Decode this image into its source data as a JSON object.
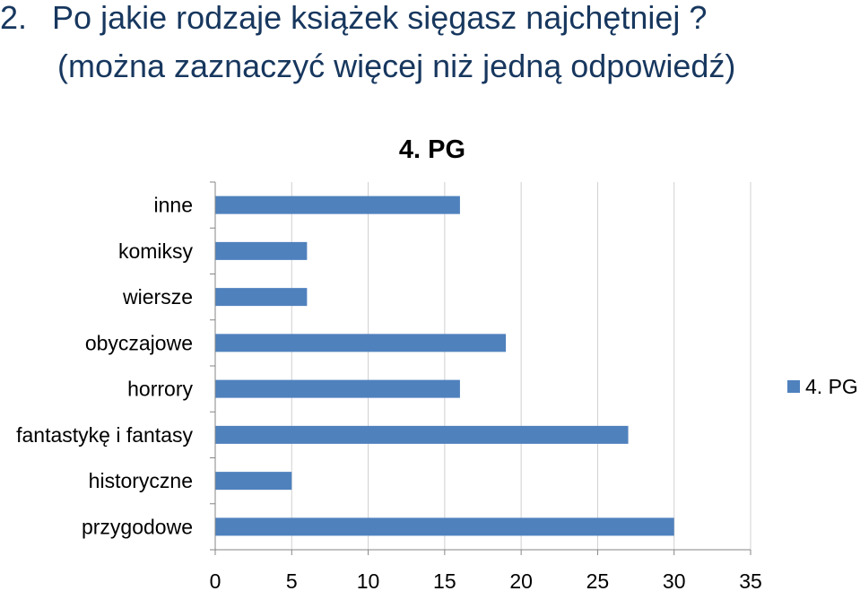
{
  "question": {
    "number_text": "2.",
    "line1": "Po jakie rodzaje książek sięgasz najchętniej ?",
    "line2": "(można zaznaczyć więcej niż jedną odpowiedź)"
  },
  "colors": {
    "bar": "#4f81bd",
    "question_text": "#17375e",
    "axis": "#868686",
    "text": "#000000"
  },
  "chart_data": {
    "type": "bar",
    "orientation": "horizontal",
    "title": "4. PG",
    "categories": [
      "inne",
      "komiksy",
      "wiersze",
      "obyczajowe",
      "horrory",
      "fantastykę i fantasy",
      "historyczne",
      "przygodowe"
    ],
    "series": [
      {
        "name": "4. PG",
        "values": [
          16,
          6,
          6,
          19,
          16,
          27,
          5,
          30
        ]
      }
    ],
    "xlim": [
      0,
      35
    ],
    "xticks": [
      0,
      5,
      10,
      15,
      20,
      25,
      30,
      35
    ],
    "grid": "vertical",
    "legend": "right"
  }
}
